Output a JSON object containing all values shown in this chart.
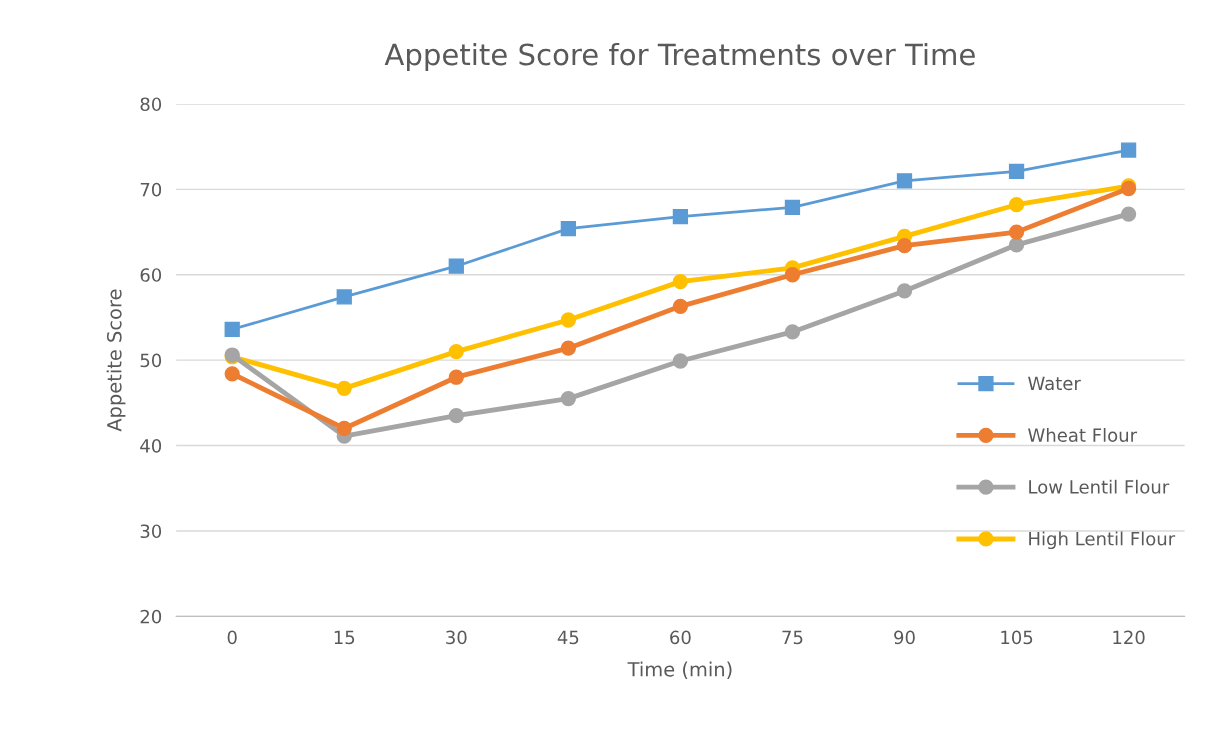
{
  "chart_data": {
    "type": "line",
    "title": "Appetite Score for Treatments over Time",
    "xlabel": "Time (min)",
    "ylabel": "Appetite Score",
    "categories": [
      "0",
      "15",
      "30",
      "45",
      "60",
      "75",
      "90",
      "105",
      "120"
    ],
    "series": [
      {
        "name": "Water",
        "color": "#5b9bd5",
        "marker": "square",
        "values": [
          53.6,
          57.4,
          61.0,
          65.4,
          66.8,
          67.9,
          71.0,
          72.1,
          74.6
        ]
      },
      {
        "name": "Wheat Flour",
        "color": "#ed7d31",
        "marker": "circle",
        "values": [
          48.4,
          42.0,
          48.0,
          51.4,
          56.3,
          60.0,
          63.4,
          65.0,
          70.1
        ]
      },
      {
        "name": "Low Lentil Flour",
        "color": "#a5a5a5",
        "marker": "circle",
        "values": [
          50.6,
          41.1,
          43.5,
          45.5,
          49.9,
          53.3,
          58.1,
          63.5,
          67.1
        ]
      },
      {
        "name": "High Lentil Flour",
        "color": "#ffc000",
        "marker": "circle",
        "values": [
          50.4,
          46.7,
          51.0,
          54.7,
          59.2,
          60.8,
          64.5,
          68.2,
          70.4
        ]
      }
    ],
    "ylim": [
      20,
      80
    ],
    "yticks": [
      20,
      30,
      40,
      50,
      60,
      70,
      80
    ],
    "grid": "y",
    "legend": "right",
    "line_style": "solid"
  }
}
